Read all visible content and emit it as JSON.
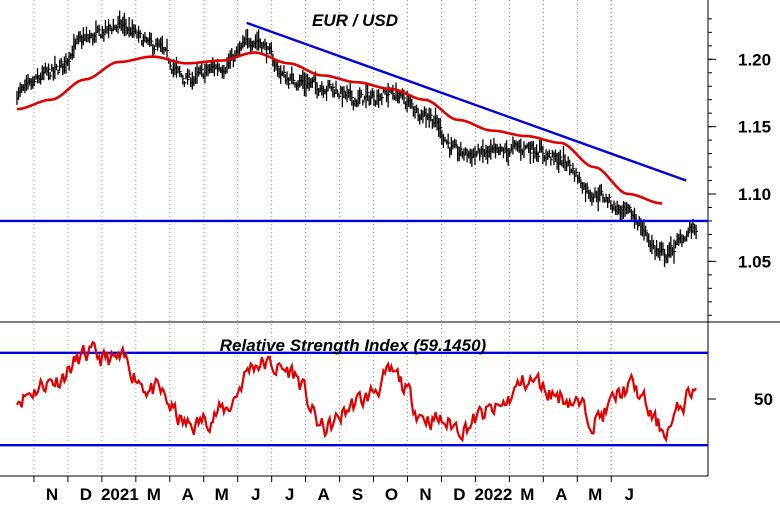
{
  "chart_data": [
    {
      "type": "line",
      "title": "EUR / USD",
      "y_ticks": [
        1.05,
        1.1,
        1.15,
        1.2
      ],
      "y_tick_labels": [
        "1.05",
        "1.10",
        "1.15",
        "1.20"
      ],
      "ylim": [
        1.005,
        1.244
      ],
      "x_tick_labels": [
        "N",
        "D",
        "2021",
        "M",
        "A",
        "M",
        "J",
        "J",
        "A",
        "S",
        "O",
        "N",
        "D",
        "2022",
        "M",
        "A",
        "M",
        "J"
      ],
      "series": [
        {
          "color": "#000000",
          "style": "daily high-low bars",
          "x": [
            "2020-10",
            "2020-11",
            "2020-12",
            "2021-01",
            "2021-02",
            "2021-03",
            "2021-04",
            "2021-05",
            "2021-06",
            "2021-07",
            "2021-08",
            "2021-09",
            "2021-10",
            "2021-11",
            "2021-12",
            "2022-01",
            "2022-02",
            "2022-03",
            "2022-04",
            "2022-05",
            "2022-06"
          ],
          "values": [
            1.175,
            1.19,
            1.215,
            1.225,
            1.21,
            1.185,
            1.195,
            1.215,
            1.185,
            1.18,
            1.17,
            1.175,
            1.16,
            1.13,
            1.13,
            1.135,
            1.125,
            1.1,
            1.085,
            1.055,
            1.075
          ]
        },
        {
          "color": "#e00000",
          "style": "moving average",
          "x": [
            "2020-10",
            "2020-11",
            "2020-12",
            "2021-01",
            "2021-02",
            "2021-03",
            "2021-04",
            "2021-05",
            "2021-06",
            "2021-07",
            "2021-08",
            "2021-09",
            "2021-10",
            "2021-11",
            "2021-12",
            "2022-01",
            "2022-02",
            "2022-03",
            "2022-04",
            "2022-05"
          ],
          "values": [
            1.163,
            1.17,
            1.185,
            1.198,
            1.202,
            1.197,
            1.199,
            1.205,
            1.197,
            1.188,
            1.183,
            1.178,
            1.17,
            1.155,
            1.147,
            1.143,
            1.138,
            1.12,
            1.1,
            1.093
          ]
        },
        {
          "color": "#0000e0",
          "style": "trendline",
          "x": [
            "2021-05",
            "2022-06"
          ],
          "values": [
            1.227,
            1.11
          ]
        },
        {
          "color": "#0000e0",
          "style": "horizontal line",
          "x": [
            "2020-10",
            "2022-06"
          ],
          "values": [
            1.08,
            1.08
          ]
        }
      ]
    },
    {
      "type": "line",
      "title": "Relative Strength Index (59.1450)",
      "y_ticks": [
        50
      ],
      "y_tick_labels": [
        "50"
      ],
      "ylim": [
        0,
        100
      ],
      "x_tick_labels": [
        "N",
        "D",
        "2021",
        "M",
        "A",
        "M",
        "J",
        "J",
        "A",
        "S",
        "O",
        "N",
        "D",
        "2022",
        "M",
        "A",
        "M",
        "J"
      ],
      "series": [
        {
          "color": "#e00000",
          "style": "oscillator",
          "x": [
            "2020-10",
            "2020-11",
            "2020-12",
            "2021-01",
            "2021-02",
            "2021-03",
            "2021-04",
            "2021-05",
            "2021-06",
            "2021-07",
            "2021-08",
            "2021-09",
            "2021-10",
            "2021-11",
            "2021-12",
            "2022-01",
            "2022-02",
            "2022-03",
            "2022-04",
            "2022-05",
            "2022-06"
          ],
          "values": [
            52,
            62,
            78,
            74,
            55,
            32,
            42,
            74,
            68,
            30,
            48,
            65,
            38,
            32,
            42,
            62,
            52,
            38,
            58,
            30,
            59
          ]
        },
        {
          "color": "#0000e0",
          "style": "overbought line",
          "x": [
            "2020-10",
            "2022-06"
          ],
          "values": [
            80,
            80
          ]
        },
        {
          "color": "#0000e0",
          "style": "oversold line",
          "x": [
            "2020-10",
            "2022-06"
          ],
          "values": [
            20,
            20
          ]
        }
      ]
    }
  ]
}
